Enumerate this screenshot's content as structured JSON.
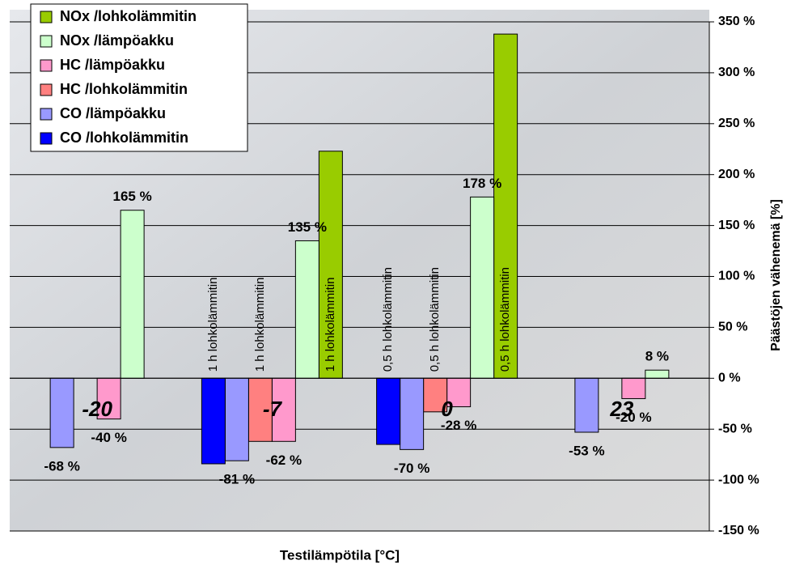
{
  "chart_data": {
    "type": "bar",
    "x_label": "Testilämpötila [°C]",
    "y_label": "Päästöjen vähenemä [%]",
    "categories": [
      "-20",
      "-7",
      "0",
      "23"
    ],
    "series": [
      {
        "name": "NOx /lohkolämmitin",
        "color": "#99cc00",
        "values": [
          null,
          223,
          338,
          null
        ]
      },
      {
        "name": "NOx /lämpöakku",
        "color": "#ccffcc",
        "values": [
          165,
          135,
          178,
          8
        ],
        "value_labels": [
          "165 %",
          "135 %",
          "178 %",
          "8 %"
        ]
      },
      {
        "name": "HC /lämpöakku",
        "color": "#ff99cc",
        "values": [
          -40,
          -62,
          -28,
          -20
        ],
        "value_labels": [
          "-40 %",
          "-62 %",
          "-28 %",
          "-20 %"
        ]
      },
      {
        "name": "HC /lohkolämmitin",
        "color": "#ff8080",
        "values": [
          null,
          -62,
          -33,
          null
        ]
      },
      {
        "name": "CO /lämpöakku",
        "color": "#9999ff",
        "values": [
          -68,
          -81,
          -70,
          -53
        ],
        "value_labels": [
          "-68 %",
          "-81 %",
          "-70 %",
          "-53 %"
        ]
      },
      {
        "name": "CO /lohkolämmitin",
        "color": "#0000ff",
        "values": [
          null,
          -84,
          -65,
          null
        ]
      }
    ],
    "lohko_labels": [
      null,
      "1 h lohkolämmitin",
      "0,5 h lohkolämmitin",
      null
    ],
    "ylim": [
      -150,
      350
    ],
    "yticks": [
      {
        "value": -150,
        "label": "-150 %"
      },
      {
        "value": -100,
        "label": "-100 %"
      },
      {
        "value": -50,
        "label": "-50 %"
      },
      {
        "value": 0,
        "label": "0 %"
      },
      {
        "value": 50,
        "label": "50 %"
      },
      {
        "value": 100,
        "label": "100 %"
      },
      {
        "value": 150,
        "label": "150 %"
      },
      {
        "value": 200,
        "label": "200 %"
      },
      {
        "value": 250,
        "label": "250 %"
      },
      {
        "value": 300,
        "label": "300 %"
      },
      {
        "value": 350,
        "label": "350 %"
      }
    ],
    "grid": true,
    "legend": "upper left"
  }
}
